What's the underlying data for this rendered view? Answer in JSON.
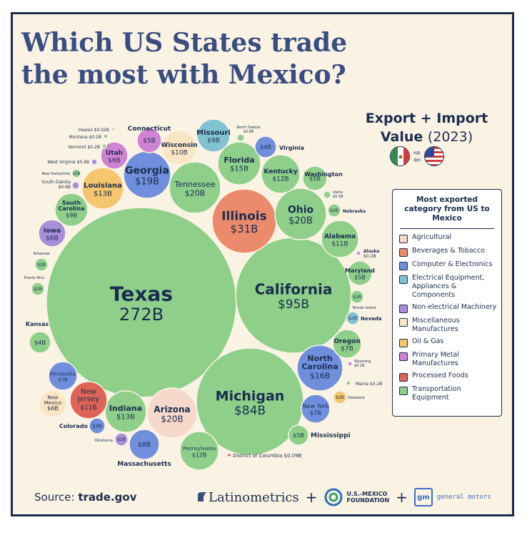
{
  "header": {
    "title_line1": "Which US States trade",
    "title_line2": "the most with Mexico?",
    "subtitle_line1": "Export + Import",
    "subtitle_value": "Value",
    "subtitle_year": "(2023)"
  },
  "legend": {
    "title": "Most exported category from US to Mexico",
    "items": [
      {
        "label": "Agricultural",
        "color": "#f7d9cc"
      },
      {
        "label": "Beverages & Tobacco",
        "color": "#ec8b6c"
      },
      {
        "label": "Computer & Electronics",
        "color": "#6f8fdc"
      },
      {
        "label": "Electrical Equipment, Appliances & Components",
        "color": "#82c3d3"
      },
      {
        "label": "Non-electrical Machinery",
        "color": "#a98ed9"
      },
      {
        "label": "Miscellaneous Manufactures",
        "color": "#fbe6c3"
      },
      {
        "label": "Oil & Gas",
        "color": "#f5c66e"
      },
      {
        "label": "Primary Metal Manufactures",
        "color": "#cf83d3"
      },
      {
        "label": "Processed Foods",
        "color": "#de6457"
      },
      {
        "label": "Transportation Equipment",
        "color": "#8ecf8a"
      }
    ]
  },
  "footer": {
    "source_prefix": "Source:",
    "source_name": "trade.gov",
    "logo1": "Latinometrics",
    "plus": "+",
    "logo2_line1": "U.S.-MEXICO",
    "logo2_line2": "FOUNDATION",
    "logo3_mark": "gm",
    "logo3_text": "general motors"
  },
  "chart_data": {
    "type": "bubble",
    "unit": "billion USD",
    "states": [
      {
        "state": "Texas",
        "value": 272,
        "label": "272B",
        "category": "Transportation Equipment"
      },
      {
        "state": "California",
        "value": 95,
        "label": "$95B",
        "category": "Transportation Equipment"
      },
      {
        "state": "Michigan",
        "value": 84,
        "label": "$84B",
        "category": "Transportation Equipment"
      },
      {
        "state": "Illinois",
        "value": 31,
        "label": "$31B",
        "category": "Beverages & Tobacco"
      },
      {
        "state": "Ohio",
        "value": 20,
        "label": "$20B",
        "category": "Transportation Equipment"
      },
      {
        "state": "Tennessee",
        "value": 20,
        "label": "$20B",
        "category": "Transportation Equipment"
      },
      {
        "state": "Arizona",
        "value": 20,
        "label": "$20B",
        "category": "Agricultural"
      },
      {
        "state": "Georgia",
        "value": 19,
        "label": "$19B",
        "category": "Computer & Electronics"
      },
      {
        "state": "North Carolina",
        "value": 16,
        "label": "$16B",
        "category": "Computer & Electronics"
      },
      {
        "state": "Florida",
        "value": 15,
        "label": "$15B",
        "category": "Transportation Equipment"
      },
      {
        "state": "Louisiana",
        "value": 13,
        "label": "$13B",
        "category": "Oil & Gas"
      },
      {
        "state": "Indiana",
        "value": 13,
        "label": "$13B",
        "category": "Transportation Equipment"
      },
      {
        "state": "Kentucky",
        "value": 12,
        "label": "$12B",
        "category": "Transportation Equipment"
      },
      {
        "state": "Pennsylvania",
        "value": 12,
        "label": "$12B",
        "category": "Transportation Equipment"
      },
      {
        "state": "Alabama",
        "value": 11,
        "label": "$11B",
        "category": "Transportation Equipment"
      },
      {
        "state": "New Jersey",
        "value": 11,
        "label": "$11B",
        "category": "Processed Foods"
      },
      {
        "state": "Wisconsin",
        "value": 10,
        "label": "$10B",
        "category": "Miscellaneous Manufactures"
      },
      {
        "state": "Missouri",
        "value": 9,
        "label": "$9B",
        "category": "Electrical Equipment, Appliances & Components"
      },
      {
        "state": "South Carolina",
        "value": 9,
        "label": "$9B",
        "category": "Transportation Equipment"
      },
      {
        "state": "Massachusetts",
        "value": 8,
        "label": "$8B",
        "category": "Computer & Electronics"
      },
      {
        "state": "Minnesota",
        "value": 7,
        "label": "$7B",
        "category": "Computer & Electronics"
      },
      {
        "state": "Oregon",
        "value": 7,
        "label": "$7B",
        "category": "Transportation Equipment"
      },
      {
        "state": "New York",
        "value": 7,
        "label": "$7B",
        "category": "Computer & Electronics"
      },
      {
        "state": "Utah",
        "value": 6,
        "label": "$6B",
        "category": "Primary Metal Manufactures"
      },
      {
        "state": "Iowa",
        "value": 6,
        "label": "$6B",
        "category": "Non-electrical Machinery"
      },
      {
        "state": "New Mexico",
        "value": 6,
        "label": "$6B",
        "category": "Miscellaneous Manufactures"
      },
      {
        "state": "Connecticut",
        "value": 5,
        "label": "$5B",
        "category": "Primary Metal Manufactures"
      },
      {
        "state": "Washington",
        "value": 5,
        "label": "$5B",
        "category": "Transportation Equipment"
      },
      {
        "state": "Maryland",
        "value": 5,
        "label": "$5B",
        "category": "Transportation Equipment"
      },
      {
        "state": "Mississippi",
        "value": 5,
        "label": "$5B",
        "category": "Transportation Equipment"
      },
      {
        "state": "Virginia",
        "value": 4,
        "label": "$4B",
        "category": "Computer & Electronics"
      },
      {
        "state": "Kansas",
        "value": 4,
        "label": "$4B",
        "category": "Transportation Equipment"
      },
      {
        "state": "Colorado",
        "value": 3,
        "label": "$3B",
        "category": "Computer & Electronics"
      },
      {
        "state": "Nebraska",
        "value": 2,
        "label": "$2B",
        "category": "Transportation Equipment"
      },
      {
        "state": "Nevada",
        "value": 2,
        "label": "$2B",
        "category": "Electrical Equipment, Appliances & Components"
      },
      {
        "state": "Rhode Island",
        "value": 2,
        "label": "$2B",
        "category": "Transportation Equipment"
      },
      {
        "state": "Arkansas",
        "value": 2,
        "label": "$2B",
        "category": "Transportation Equipment"
      },
      {
        "state": "Puerto Rico",
        "value": 2,
        "label": "$2B",
        "category": "Transportation Equipment"
      },
      {
        "state": "Oklahoma",
        "value": 2,
        "label": "$2B",
        "category": "Non-electrical Machinery"
      },
      {
        "state": "Delaware",
        "value": 2,
        "label": "$2B",
        "category": "Oil & Gas"
      },
      {
        "state": "New Hampshire",
        "value": 1,
        "label": "$1B",
        "category": "Transportation Equipment"
      },
      {
        "state": "North Dakota",
        "value": 0.8,
        "label": "$0.8B",
        "category": "Transportation Equipment"
      },
      {
        "state": "South Dakota",
        "value": 0.6,
        "label": "$0.6B",
        "category": "Non-electrical Machinery"
      },
      {
        "state": "Idaho",
        "value": 0.5,
        "label": "$0.5B",
        "category": "Transportation Equipment"
      },
      {
        "state": "West Virginia",
        "value": 0.4,
        "label": "$0.4B",
        "category": "Non-electrical Machinery"
      },
      {
        "state": "Montana",
        "value": 0.2,
        "label": "$0.2B",
        "category": "Transportation Equipment"
      },
      {
        "state": "Vermont",
        "value": 0.2,
        "label": "$0.2B",
        "category": "Transportation Equipment"
      },
      {
        "state": "Alaska",
        "value": 0.2,
        "label": "$0.2B",
        "category": "Primary Metal Manufactures"
      },
      {
        "state": "Maine",
        "value": 0.2,
        "label": "$0.2B",
        "category": "Transportation Equipment"
      },
      {
        "state": "Wyoming",
        "value": 0.1,
        "label": "$0.1B",
        "category": "Primary Metal Manufactures"
      },
      {
        "state": "District of Columbia",
        "value": 0.09,
        "label": "$0.09B",
        "category": "Processed Foods"
      },
      {
        "state": "Hawaii",
        "value": 0.02,
        "label": "$0.02B",
        "category": "Transportation Equipment"
      }
    ]
  }
}
